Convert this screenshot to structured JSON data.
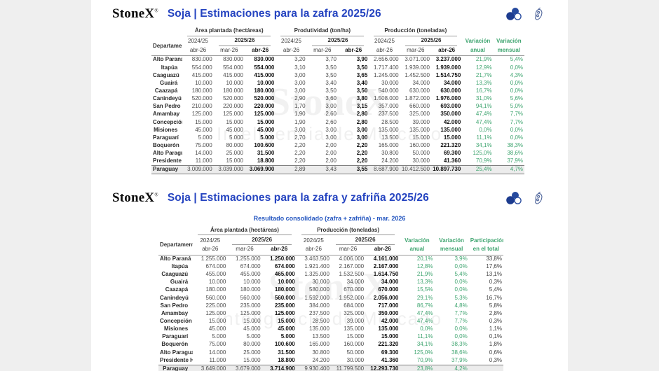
{
  "brand": {
    "name": "StoneX",
    "mark": "®"
  },
  "icons": {
    "cluster": "soybean-cluster-icon",
    "pod": "soybean-pod-icon"
  },
  "colors": {
    "accent_blue": "#2443c0",
    "subtitle_blue": "#2456c0",
    "positive_green": "#3fa570",
    "total_row_bg": "#ececec",
    "page_margin_bg": "#efefef",
    "panel_bg": "#ffffff"
  },
  "watermark": {
    "line1": "StoneX",
    "line2": "Inteligencia de Mercado"
  },
  "section1": {
    "title": "Soja | Estimaciones para la zafra 2025/26",
    "header": {
      "departamento": "Departamento",
      "groups": {
        "area": "Área plantada (hectáreas)",
        "productivity": "Produtividad (ton/ha)",
        "production": "Producción (toneladas)"
      },
      "season_prev": "2024/25",
      "season_curr": "2025/26",
      "month_prev": "abr-26",
      "month_m1": "mar-26",
      "month_m2": "abr-26",
      "var_annual_top": "Variación",
      "var_annual_bottom": "anual",
      "var_monthly_top": "Variación",
      "var_monthly_bottom": "mensual"
    },
    "rows": [
      {
        "cells": [
          "Alto Paraná",
          "830.000",
          "830.000",
          "830.000",
          "3,20",
          "3,70",
          "3,90",
          "2.656.000",
          "3.071.000",
          "3.237.000",
          "21,9%",
          "5,4%"
        ]
      },
      {
        "cells": [
          "Itapúa",
          "554.000",
          "554.000",
          "554.000",
          "3,10",
          "3,50",
          "3,50",
          "1.717.400",
          "1.939.000",
          "1.939.000",
          "12,9%",
          "0,0%"
        ]
      },
      {
        "cells": [
          "Caaguazú",
          "415.000",
          "415.000",
          "415.000",
          "3,00",
          "3,50",
          "3,65",
          "1.245.000",
          "1.452.500",
          "1.514.750",
          "21,7%",
          "4,3%"
        ]
      },
      {
        "cells": [
          "Guairá",
          "10.000",
          "10.000",
          "10.000",
          "3,00",
          "3,40",
          "3,40",
          "30.000",
          "34.000",
          "34.000",
          "13,3%",
          "0,0%"
        ]
      },
      {
        "cells": [
          "Caazapá",
          "180.000",
          "180.000",
          "180.000",
          "3,00",
          "3,50",
          "3,50",
          "540.000",
          "630.000",
          "630.000",
          "16,7%",
          "0,0%"
        ]
      },
      {
        "cells": [
          "Canindeyú",
          "520.000",
          "520.000",
          "520.000",
          "2,90",
          "3,60",
          "3,80",
          "1.508.000",
          "1.872.000",
          "1.976.000",
          "31,0%",
          "5,6%"
        ]
      },
      {
        "cells": [
          "San Pedro",
          "210.000",
          "220.000",
          "220.000",
          "1,70",
          "3,00",
          "3,15",
          "357.000",
          "660.000",
          "693.000",
          "94,1%",
          "5,0%"
        ]
      },
      {
        "cells": [
          "Amambay",
          "125.000",
          "125.000",
          "125.000",
          "1,90",
          "2,60",
          "2,80",
          "237.500",
          "325.000",
          "350.000",
          "47,4%",
          "7,7%"
        ]
      },
      {
        "cells": [
          "Concepción",
          "15.000",
          "15.000",
          "15.000",
          "1,90",
          "2,60",
          "2,80",
          "28.500",
          "39.000",
          "42.000",
          "47,4%",
          "7,7%"
        ]
      },
      {
        "cells": [
          "Misiones",
          "45.000",
          "45.000",
          "45.000",
          "3,00",
          "3,00",
          "3,00",
          "135.000",
          "135.000",
          "135.000",
          "0,0%",
          "0,0%"
        ]
      },
      {
        "cells": [
          "Paraguarí",
          "5.000",
          "5.000",
          "5.000",
          "2,70",
          "3,00",
          "3,00",
          "13.500",
          "15.000",
          "15.000",
          "11,1%",
          "0,0%"
        ]
      },
      {
        "cells": [
          "Boquerón",
          "75.000",
          "80.000",
          "100.600",
          "2,20",
          "2,00",
          "2,20",
          "165.000",
          "160.000",
          "221.320",
          "34,1%",
          "38,3%"
        ]
      },
      {
        "cells": [
          "Alto Paraguay",
          "14.000",
          "25.000",
          "31.500",
          "2,20",
          "2,00",
          "2,20",
          "30.800",
          "50.000",
          "69.300",
          "125,0%",
          "38,6%"
        ]
      },
      {
        "cells": [
          "Presidente Hayes",
          "11.000",
          "15.000",
          "18.800",
          "2,20",
          "2,00",
          "2,20",
          "24.200",
          "30.000",
          "41.360",
          "70,9%",
          "37,9%"
        ]
      },
      {
        "total": true,
        "cells": [
          "Paraguay",
          "3.009.000",
          "3.039.000",
          "3.069.900",
          "2,89",
          "3,43",
          "3,55",
          "8.687.900",
          "10.412.500",
          "10.897.730",
          "25,4%",
          "4,7%"
        ]
      }
    ]
  },
  "section2": {
    "title": "Soja | Estimaciones para la zafra y zafriña 2025/26",
    "subtitle": "Resultado consolidado (zafra + zafriña) - mar. 2026",
    "header": {
      "departamento": "Departamento",
      "groups": {
        "area": "Área plantada (hectáreas)",
        "production": "Producción (toneladas)"
      },
      "season_prev": "2024/25",
      "season_curr": "2025/26",
      "month_prev": "abr-26",
      "month_m1": "mar-26",
      "month_m2": "abr-26",
      "var_annual_top": "Variación",
      "var_annual_bottom": "anual",
      "var_monthly_top": "Variación",
      "var_monthly_bottom": "mensual",
      "part_top": "Participación",
      "part_bottom": "en el total"
    },
    "rows": [
      {
        "cells": [
          "Alto Paraná",
          "1.255.000",
          "1.255.000",
          "1.250.000",
          "3.463.500",
          "4.006.000",
          "4.161.000",
          "20,1%",
          "3,9%",
          "33,8%"
        ]
      },
      {
        "cells": [
          "Itapúa",
          "674.000",
          "674.000",
          "674.000",
          "1.921.400",
          "2.167.000",
          "2.167.000",
          "12,8%",
          "0,0%",
          "17,6%"
        ]
      },
      {
        "cells": [
          "Caaguazú",
          "455.000",
          "455.000",
          "465.000",
          "1.325.000",
          "1.532.500",
          "1.614.750",
          "21,9%",
          "5,4%",
          "13,1%"
        ]
      },
      {
        "cells": [
          "Guairá",
          "10.000",
          "10.000",
          "10.000",
          "30.000",
          "34.000",
          "34.000",
          "13,3%",
          "0,0%",
          "0,3%"
        ]
      },
      {
        "cells": [
          "Caazapá",
          "180.000",
          "180.000",
          "180.000",
          "580.000",
          "670.000",
          "670.000",
          "15,5%",
          "0,0%",
          "5,4%"
        ]
      },
      {
        "cells": [
          "Canindeyú",
          "560.000",
          "560.000",
          "560.000",
          "1.592.000",
          "1.952.000",
          "2.056.000",
          "29,1%",
          "5,3%",
          "16,7%"
        ]
      },
      {
        "cells": [
          "San Pedro",
          "225.000",
          "235.000",
          "235.000",
          "384.000",
          "684.000",
          "717.000",
          "86,7%",
          "4,8%",
          "5,8%"
        ]
      },
      {
        "cells": [
          "Amambay",
          "125.000",
          "125.000",
          "125.000",
          "237.500",
          "325.000",
          "350.000",
          "47,4%",
          "7,7%",
          "2,8%"
        ]
      },
      {
        "cells": [
          "Concepción",
          "15.000",
          "15.000",
          "15.000",
          "28.500",
          "39.000",
          "42.000",
          "47,4%",
          "7,7%",
          "0,3%"
        ]
      },
      {
        "cells": [
          "Misiones",
          "45.000",
          "45.000",
          "45.000",
          "135.000",
          "135.000",
          "135.000",
          "0,0%",
          "0,0%",
          "1,1%"
        ]
      },
      {
        "cells": [
          "Paraguarí",
          "5.000",
          "5.000",
          "5.000",
          "13.500",
          "15.000",
          "15.000",
          "11,1%",
          "0,0%",
          "0,1%"
        ]
      },
      {
        "cells": [
          "Boquerón",
          "75.000",
          "80.000",
          "100.600",
          "165.000",
          "160.000",
          "221.320",
          "34,1%",
          "38,3%",
          "1,8%"
        ]
      },
      {
        "cells": [
          "Alto Paraguay",
          "14.000",
          "25.000",
          "31.500",
          "30.800",
          "50.000",
          "69.300",
          "125,0%",
          "38,6%",
          "0,6%"
        ]
      },
      {
        "cells": [
          "Presidente Hayes",
          "11.000",
          "15.000",
          "18.800",
          "24.200",
          "30.000",
          "41.360",
          "70,9%",
          "37,9%",
          "0,3%"
        ]
      },
      {
        "total": true,
        "cells": [
          "Paraguay",
          "3.649.000",
          "3.679.000",
          "3.714.900",
          "9.930.400",
          "11.799.500",
          "12.293.730",
          "23,8%",
          "4,2%",
          ""
        ]
      }
    ]
  }
}
